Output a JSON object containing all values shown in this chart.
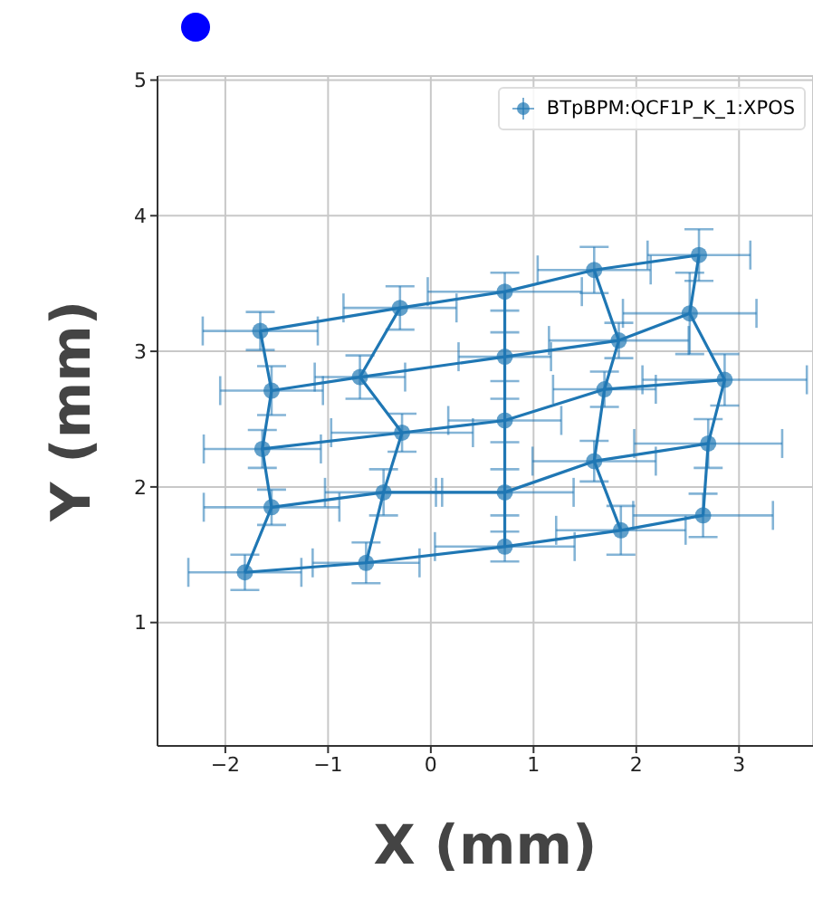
{
  "chart_data": {
    "type": "scatter",
    "xlabel": "X (mm)",
    "ylabel": "Y (mm)",
    "xlim": [
      -2.66,
      3.72
    ],
    "ylim": [
      0.09,
      5.03
    ],
    "xticks": [
      {
        "value": -2,
        "label": "−2"
      },
      {
        "value": -1,
        "label": "−1"
      },
      0,
      1,
      2,
      3
    ],
    "yticks": [
      1,
      2,
      3,
      4,
      5
    ],
    "grid": true,
    "legend": "top right",
    "marker": "circle",
    "series": [
      {
        "name": "BTpBPM:QCF1P_K_1:XPOS",
        "color": "#1f77b4",
        "x": [
          -1.66,
          -0.3,
          0.72,
          1.59,
          2.61,
          -1.55,
          -0.69,
          0.72,
          1.83,
          2.52,
          -1.64,
          -0.28,
          0.72,
          1.69,
          2.86,
          -1.55,
          -0.46,
          0.72,
          1.59,
          2.7,
          -1.81,
          -0.63,
          0.72,
          1.85,
          2.65
        ],
        "values": [
          3.15,
          3.32,
          3.44,
          3.6,
          3.71,
          2.71,
          2.81,
          2.96,
          3.08,
          3.28,
          2.28,
          2.4,
          2.49,
          2.72,
          2.79,
          1.85,
          1.96,
          1.96,
          2.19,
          2.32,
          1.37,
          1.44,
          1.56,
          1.68,
          1.79
        ],
        "errors": [
          0.14,
          0.16,
          0.14,
          0.17,
          0.19,
          0.18,
          0.16,
          0.18,
          0.13,
          0.3,
          0.14,
          0.14,
          0.16,
          0.13,
          0.19,
          0.13,
          0.17,
          0.17,
          0.15,
          0.18,
          0.13,
          0.15,
          0.11,
          0.18,
          0.16
        ],
        "xerrors": [
          0.56,
          0.55,
          0.75,
          0.55,
          0.5,
          0.5,
          0.44,
          0.45,
          0.68,
          0.65,
          0.57,
          0.69,
          0.55,
          0.5,
          0.8,
          0.66,
          0.57,
          0.67,
          0.6,
          0.72,
          0.55,
          0.52,
          0.68,
          0.63,
          0.68
        ]
      },
      {
        "type": "line",
        "color": "#1f77b4",
        "marker": "none",
        "x": [
          -1.66,
          -0.3,
          0.72,
          1.59,
          2.61
        ],
        "values": [
          3.15,
          3.32,
          3.44,
          3.6,
          3.71
        ]
      },
      {
        "type": "line",
        "color": "#1f77b4",
        "marker": "none",
        "x": [
          -1.55,
          -0.69,
          0.72,
          1.83,
          2.52
        ],
        "values": [
          2.71,
          2.81,
          2.96,
          3.08,
          3.28
        ]
      },
      {
        "type": "line",
        "color": "#1f77b4",
        "marker": "none",
        "x": [
          -1.64,
          -0.28,
          0.72,
          1.69,
          2.86
        ],
        "values": [
          2.28,
          2.4,
          2.49,
          2.72,
          2.79
        ]
      },
      {
        "type": "line",
        "color": "#1f77b4",
        "marker": "none",
        "x": [
          -1.55,
          -0.46,
          0.72,
          1.59,
          2.7
        ],
        "values": [
          1.85,
          1.96,
          1.96,
          2.19,
          2.32
        ]
      },
      {
        "type": "line",
        "color": "#1f77b4",
        "marker": "none",
        "x": [
          -1.81,
          -0.63,
          0.72,
          1.85,
          2.65
        ],
        "values": [
          1.37,
          1.44,
          1.56,
          1.68,
          1.79
        ]
      },
      {
        "type": "line",
        "color": "#1f77b4",
        "marker": "none",
        "x": [
          -1.66,
          -1.55,
          -1.64,
          -1.55,
          -1.81
        ],
        "values": [
          3.15,
          2.71,
          2.28,
          1.85,
          1.37
        ]
      },
      {
        "type": "line",
        "color": "#1f77b4",
        "marker": "none",
        "x": [
          -0.3,
          -0.69,
          -0.28,
          -0.46,
          -0.63
        ],
        "values": [
          3.32,
          2.81,
          2.4,
          1.96,
          1.44
        ]
      },
      {
        "type": "line",
        "color": "#1f77b4",
        "marker": "none",
        "x": [
          0.72,
          0.72,
          0.72,
          0.72,
          0.72
        ],
        "values": [
          3.44,
          2.96,
          2.49,
          1.96,
          1.56
        ]
      },
      {
        "type": "line",
        "color": "#1f77b4",
        "marker": "none",
        "x": [
          1.59,
          1.83,
          1.69,
          1.59,
          1.85
        ],
        "values": [
          3.6,
          3.08,
          2.72,
          2.19,
          1.68
        ]
      },
      {
        "type": "line",
        "color": "#1f77b4",
        "marker": "none",
        "x": [
          2.61,
          2.52,
          2.86,
          2.7,
          2.65
        ],
        "values": [
          3.71,
          3.28,
          2.79,
          2.32,
          1.79
        ]
      }
    ]
  }
}
